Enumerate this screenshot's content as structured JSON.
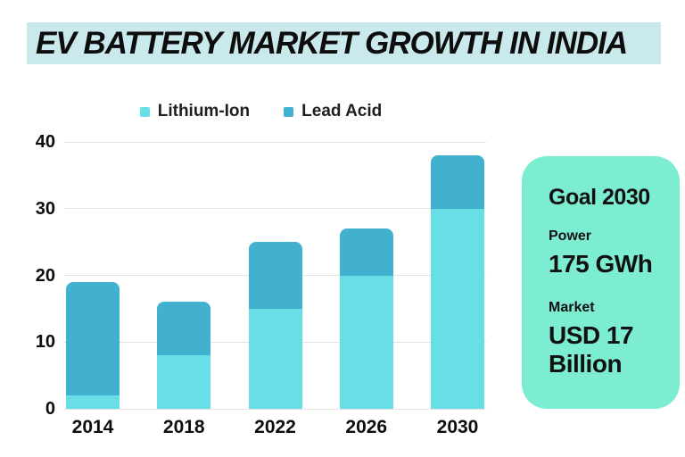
{
  "title": "EV BATTERY MARKET GROWTH IN INDIA",
  "colors": {
    "title_bg": "#c9e9ed",
    "panel_bg": "#7dedd2",
    "lithium_ion": "#68dee6",
    "lead_acid": "#41b1cf",
    "gridline": "#e2e2e2",
    "text": "#111111"
  },
  "chart_data": {
    "type": "bar",
    "stacked": true,
    "title": "EV Battery Market Growth in India",
    "categories": [
      "2014",
      "2018",
      "2022",
      "2026",
      "2030"
    ],
    "series": [
      {
        "name": "Lithium-Ion",
        "color": "#68dee6",
        "values": [
          2,
          8,
          15,
          20,
          30
        ]
      },
      {
        "name": "Lead Acid",
        "color": "#41b1cf",
        "values": [
          17,
          8,
          10,
          7,
          8
        ]
      }
    ],
    "stack_totals": [
      19,
      16,
      25,
      27,
      38
    ],
    "xlabel": "",
    "ylabel": "",
    "ylim": [
      0,
      40
    ],
    "yticks": [
      0,
      10,
      20,
      30,
      40
    ],
    "grid": true,
    "legend_position": "top-center"
  },
  "goal_panel": {
    "heading": "Goal 2030",
    "power_label": "Power",
    "power_value": "175 GWh",
    "market_label": "Market",
    "market_value": "USD 17 Billion"
  }
}
